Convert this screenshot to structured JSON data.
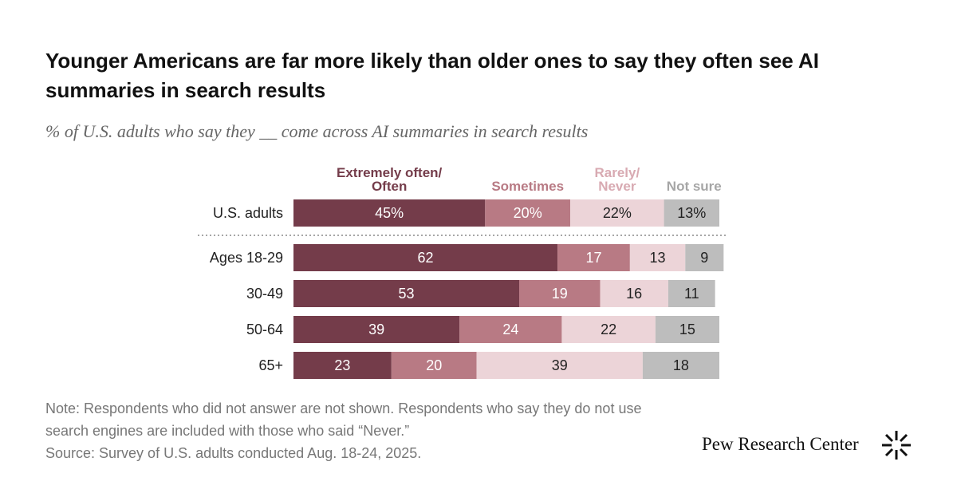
{
  "chart_data": {
    "type": "stacked-bar",
    "title": "Younger Americans are far more likely than older ones to say they often see AI summaries in search results",
    "subtitle": "% of U.S. adults who say they __ come across AI summaries in search results",
    "categories": [
      "U.S. adults",
      "Ages 18-29",
      "30-49",
      "50-64",
      "65+"
    ],
    "series": [
      {
        "name": "Extremely often/ Often",
        "color": "#743c4a",
        "values": [
          45,
          62,
          53,
          39,
          23
        ],
        "value_labels": [
          "45%",
          "62",
          "53",
          "39",
          "23"
        ]
      },
      {
        "name": "Sometimes",
        "color": "#b87a84",
        "values": [
          20,
          17,
          19,
          24,
          20
        ],
        "value_labels": [
          "20%",
          "17",
          "19",
          "24",
          "20"
        ]
      },
      {
        "name": "Rarely/ Never",
        "color": "#ecd4d8",
        "values": [
          22,
          13,
          16,
          22,
          39
        ],
        "value_labels": [
          "22%",
          "13",
          "16",
          "22",
          "39"
        ]
      },
      {
        "name": "Not sure",
        "color": "#bdbdbd",
        "values": [
          13,
          9,
          11,
          15,
          18
        ],
        "value_labels": [
          "13%",
          "9",
          "11",
          "15",
          "18"
        ]
      }
    ],
    "note": "Note: Respondents who did not answer are not shown. Respondents who say they do not use search engines are included with those who said “Never.”",
    "source": "Source: Survey of U.S. adults conducted Aug. 18-24, 2025."
  },
  "brand": "Pew Research Center"
}
